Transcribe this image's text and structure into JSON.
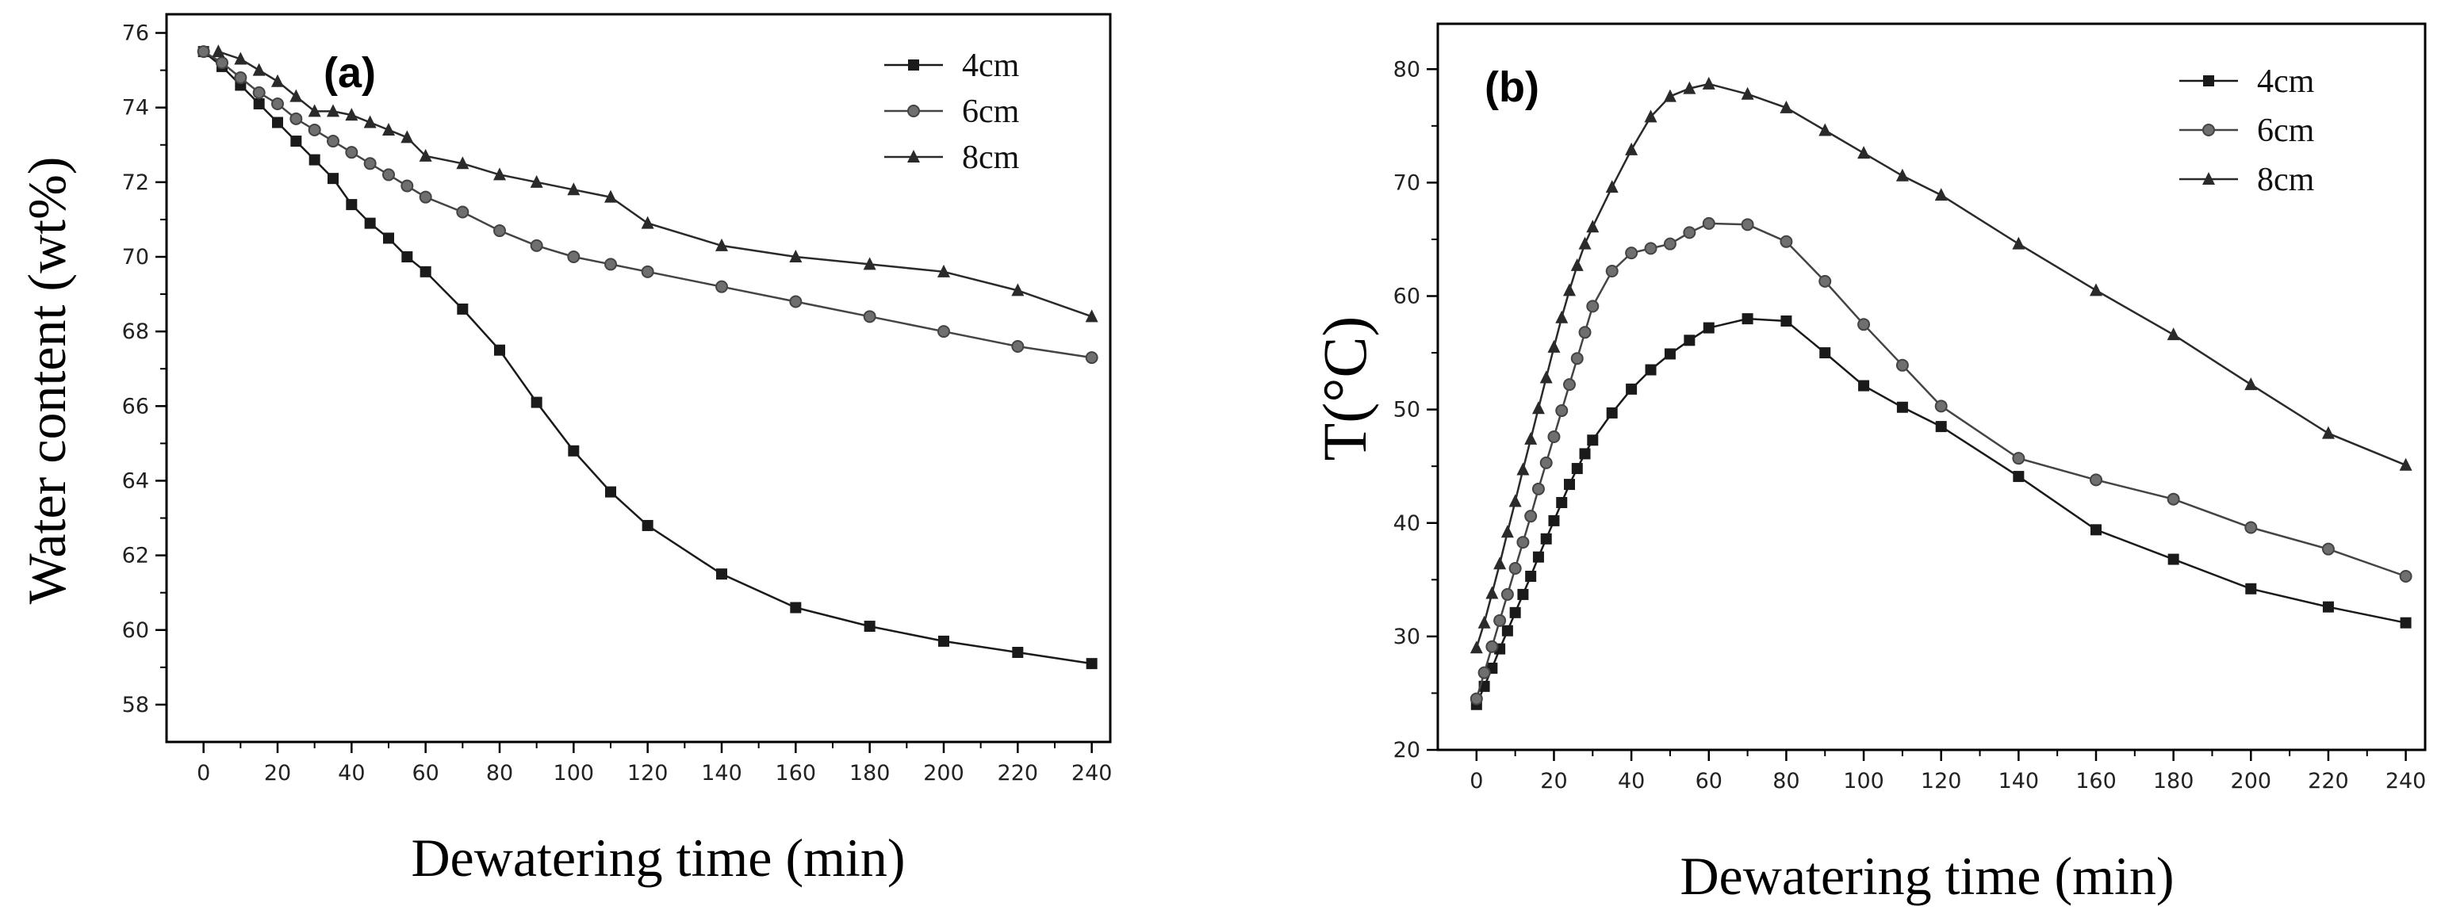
{
  "colors": {
    "axis": "#000000",
    "series": [
      "#1a1a1a",
      "#444444",
      "#2a2a2a"
    ]
  },
  "chart_data": [
    {
      "type": "line",
      "panel_label": "(a)",
      "title": "",
      "xlabel": "Dewatering time (min)",
      "ylabel": "Water content (wt%)",
      "xlim": [
        -10,
        245
      ],
      "ylim": [
        57,
        76.5
      ],
      "xticks": [
        0,
        20,
        40,
        60,
        80,
        100,
        120,
        140,
        160,
        180,
        200,
        220,
        240
      ],
      "yticks": [
        58,
        60,
        62,
        64,
        66,
        68,
        70,
        72,
        74,
        76
      ],
      "legend_position": "top-right",
      "series": [
        {
          "name": "4cm",
          "marker": "square",
          "x": [
            0,
            5,
            10,
            15,
            20,
            25,
            30,
            35,
            40,
            45,
            50,
            55,
            60,
            70,
            80,
            90,
            100,
            110,
            120,
            140,
            160,
            180,
            200,
            220,
            240
          ],
          "y": [
            75.5,
            75.1,
            74.6,
            74.1,
            73.6,
            73.1,
            72.6,
            72.1,
            71.4,
            70.9,
            70.5,
            70.0,
            69.6,
            68.6,
            67.5,
            66.1,
            64.8,
            63.7,
            62.8,
            61.5,
            60.6,
            60.1,
            59.7,
            59.4,
            59.1
          ]
        },
        {
          "name": "6cm",
          "marker": "circle",
          "x": [
            0,
            5,
            10,
            15,
            20,
            25,
            30,
            35,
            40,
            45,
            50,
            55,
            60,
            70,
            80,
            90,
            100,
            110,
            120,
            140,
            160,
            180,
            200,
            220,
            240
          ],
          "y": [
            75.5,
            75.2,
            74.8,
            74.4,
            74.1,
            73.7,
            73.4,
            73.1,
            72.8,
            72.5,
            72.2,
            71.9,
            71.6,
            71.2,
            70.7,
            70.3,
            70.0,
            69.8,
            69.6,
            69.2,
            68.8,
            68.4,
            68.0,
            67.6,
            67.3
          ]
        },
        {
          "name": "8cm",
          "marker": "triangle",
          "x": [
            4,
            10,
            15,
            20,
            25,
            30,
            35,
            40,
            45,
            50,
            55,
            60,
            70,
            80,
            90,
            100,
            110,
            120,
            140,
            160,
            180,
            200,
            220,
            240
          ],
          "y": [
            75.5,
            75.3,
            75.0,
            74.7,
            74.3,
            73.9,
            73.9,
            73.8,
            73.6,
            73.4,
            73.2,
            72.7,
            72.5,
            72.2,
            72.0,
            71.8,
            71.6,
            70.9,
            70.3,
            70.0,
            69.8,
            69.6,
            69.1,
            68.4
          ]
        }
      ]
    },
    {
      "type": "line",
      "panel_label": "(b)",
      "title": "",
      "xlabel": "Dewatering time (min)",
      "ylabel": "T(°C)",
      "xlim": [
        -10,
        245
      ],
      "ylim": [
        20,
        84
      ],
      "xticks": [
        0,
        20,
        40,
        60,
        80,
        100,
        120,
        140,
        160,
        180,
        200,
        220,
        240
      ],
      "yticks": [
        20,
        30,
        40,
        50,
        60,
        70,
        80
      ],
      "legend_position": "top-right",
      "series": [
        {
          "name": "4cm",
          "marker": "square",
          "x": [
            0,
            2,
            4,
            6,
            8,
            10,
            12,
            14,
            16,
            18,
            20,
            22,
            24,
            26,
            28,
            30,
            35,
            40,
            45,
            50,
            55,
            60,
            70,
            80,
            90,
            100,
            110,
            120,
            140,
            160,
            180,
            200,
            220,
            240
          ],
          "y": [
            24,
            25.6,
            27.2,
            28.9,
            30.5,
            32.1,
            33.7,
            35.3,
            37.0,
            38.6,
            40.2,
            41.8,
            43.4,
            44.8,
            46.1,
            47.3,
            49.7,
            51.8,
            53.5,
            54.9,
            56.1,
            57.2,
            58.0,
            57.8,
            55.0,
            52.1,
            50.2,
            48.5,
            44.1,
            39.4,
            36.8,
            34.2,
            32.6,
            31.2
          ]
        },
        {
          "name": "6cm",
          "marker": "circle",
          "x": [
            0,
            2,
            4,
            6,
            8,
            10,
            12,
            14,
            16,
            18,
            20,
            22,
            24,
            26,
            28,
            30,
            35,
            40,
            45,
            50,
            55,
            60,
            70,
            80,
            90,
            100,
            110,
            120,
            140,
            160,
            180,
            200,
            220,
            240
          ],
          "y": [
            24.5,
            26.8,
            29.1,
            31.4,
            33.7,
            36.0,
            38.3,
            40.6,
            43.0,
            45.3,
            47.6,
            49.9,
            52.2,
            54.5,
            56.8,
            59.1,
            62.2,
            63.8,
            64.2,
            64.6,
            65.6,
            66.4,
            66.3,
            64.8,
            61.3,
            57.5,
            53.9,
            50.3,
            45.7,
            43.8,
            42.1,
            39.6,
            37.7,
            35.3
          ]
        },
        {
          "name": "8cm",
          "marker": "triangle",
          "x": [
            0,
            2,
            4,
            6,
            8,
            10,
            12,
            14,
            16,
            18,
            20,
            22,
            24,
            26,
            28,
            30,
            35,
            40,
            45,
            50,
            55,
            60,
            70,
            80,
            90,
            100,
            110,
            120,
            140,
            160,
            180,
            200,
            220,
            240
          ],
          "y": [
            29.0,
            31.2,
            33.8,
            36.4,
            39.2,
            41.9,
            44.7,
            47.4,
            50.1,
            52.8,
            55.5,
            58.1,
            60.5,
            62.7,
            64.6,
            66.1,
            69.6,
            72.9,
            75.8,
            77.6,
            78.3,
            78.7,
            77.8,
            76.6,
            74.6,
            72.6,
            70.6,
            68.9,
            64.6,
            60.5,
            56.6,
            52.2,
            47.9,
            45.1
          ]
        }
      ]
    }
  ]
}
